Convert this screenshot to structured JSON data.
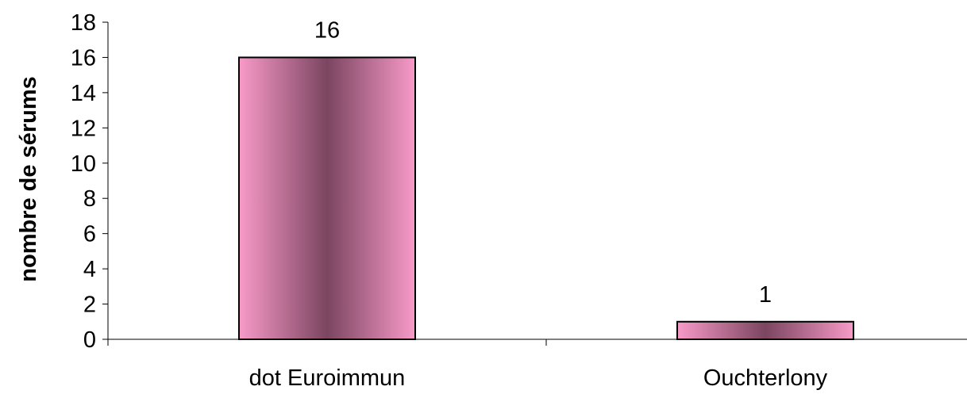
{
  "chart_data": {
    "type": "bar",
    "title": "",
    "xlabel": "",
    "ylabel": "nombre de sérums",
    "categories": [
      "dot Euroimmun",
      "Ouchterlony"
    ],
    "values": [
      16,
      1
    ],
    "data_labels": [
      "16",
      "1"
    ],
    "ylim": [
      0,
      18
    ],
    "yticks": [
      0,
      2,
      4,
      6,
      8,
      10,
      12,
      14,
      16,
      18
    ],
    "grid": false,
    "legend": "none",
    "bar_colors": {
      "edge": "#f89ac8",
      "center": "#7b4560",
      "outline": "#000000"
    }
  }
}
